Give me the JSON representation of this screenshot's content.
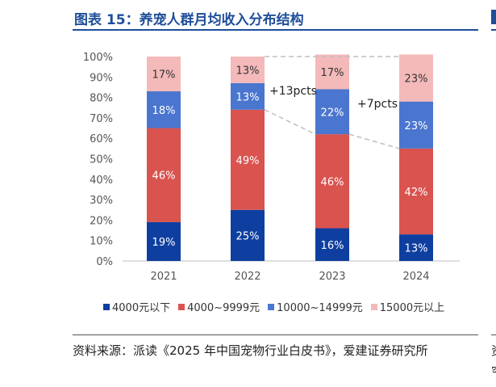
{
  "figure": {
    "title": "图表 15：养宠人群月均收入分布结构",
    "source": "资料来源：派读《2025 年中国宠物行业白皮书》，爱建证券研究所",
    "edge_glyph_top": "资",
    "edge_glyph_bottom": "究"
  },
  "colors": {
    "title": "#1f4e9a",
    "series": [
      "#0e3fa0",
      "#d9534f",
      "#4a76cf",
      "#f4b9b9"
    ],
    "connector": "#bfbfbf"
  },
  "chart_data": {
    "type": "bar",
    "stacked": true,
    "categories": [
      "2021",
      "2022",
      "2023",
      "2024"
    ],
    "series": [
      {
        "name": "4000元以下",
        "values": [
          19,
          25,
          16,
          13
        ]
      },
      {
        "name": "4000~9999元",
        "values": [
          46,
          49,
          46,
          42
        ]
      },
      {
        "name": "10000~14999元",
        "values": [
          18,
          13,
          22,
          23
        ]
      },
      {
        "name": "15000元以上",
        "values": [
          17,
          13,
          17,
          23
        ]
      }
    ],
    "data_labels": [
      [
        "19%",
        "25%",
        "16%",
        "13%"
      ],
      [
        "46%",
        "49%",
        "46%",
        "42%"
      ],
      [
        "18%",
        "13%",
        "22%",
        "23%"
      ],
      [
        "17%",
        "13%",
        "17%",
        "23%"
      ]
    ],
    "ylim": [
      0,
      100
    ],
    "yticks": [
      "0%",
      "10%",
      "20%",
      "30%",
      "40%",
      "50%",
      "60%",
      "70%",
      "80%",
      "90%",
      "100%"
    ],
    "grid": false,
    "legend_position": "bottom",
    "annotations": [
      {
        "text": "+13pcts",
        "from": "2022",
        "to": "2023"
      },
      {
        "text": "+7pcts",
        "from": "2023",
        "to": "2024"
      }
    ]
  }
}
